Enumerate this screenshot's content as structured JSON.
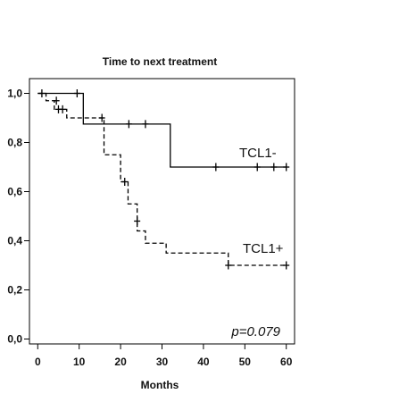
{
  "chart_data": {
    "type": "line",
    "title": "Time to next treatment",
    "xlabel": "Months",
    "ylabel": "",
    "xlim": [
      -2,
      62
    ],
    "ylim": [
      -0.02,
      1.06
    ],
    "xticks": [
      0,
      10,
      20,
      30,
      40,
      50,
      60
    ],
    "xtick_labels": [
      "0",
      "10",
      "20",
      "30",
      "40",
      "50",
      "60"
    ],
    "yticks": [
      0.0,
      0.2,
      0.4,
      0.6,
      0.8,
      1.0
    ],
    "ytick_labels": [
      "0,0",
      "0,2",
      "0,4",
      "0,6",
      "0,8",
      "1,0"
    ],
    "grid": false,
    "annotation": "p=0.079",
    "series": [
      {
        "name": "TCL1-",
        "style": "solid",
        "color": "#000000",
        "steps": [
          [
            0,
            1.0
          ],
          [
            11,
            1.0
          ],
          [
            11,
            0.875
          ],
          [
            32,
            0.875
          ],
          [
            32,
            0.7
          ],
          [
            60,
            0.7
          ]
        ],
        "censored": [
          [
            1,
            1.0
          ],
          [
            9.5,
            1.0
          ],
          [
            22,
            0.875
          ],
          [
            26,
            0.875
          ],
          [
            43,
            0.7
          ],
          [
            53,
            0.7
          ],
          [
            57,
            0.7
          ],
          [
            60,
            0.7
          ]
        ]
      },
      {
        "name": "TCL1+",
        "style": "dashed",
        "color": "#000000",
        "steps": [
          [
            0,
            1.0
          ],
          [
            2,
            1.0
          ],
          [
            2,
            0.97
          ],
          [
            4,
            0.97
          ],
          [
            4,
            0.935
          ],
          [
            7,
            0.935
          ],
          [
            7,
            0.9
          ],
          [
            16,
            0.9
          ],
          [
            16,
            0.75
          ],
          [
            20,
            0.75
          ],
          [
            20,
            0.64
          ],
          [
            21.8,
            0.64
          ],
          [
            21.8,
            0.55
          ],
          [
            24,
            0.55
          ],
          [
            24,
            0.44
          ],
          [
            26,
            0.44
          ],
          [
            26,
            0.39
          ],
          [
            31,
            0.39
          ],
          [
            31,
            0.35
          ],
          [
            46,
            0.35
          ],
          [
            46,
            0.3
          ],
          [
            60,
            0.3
          ]
        ],
        "censored": [
          [
            4.5,
            0.97
          ],
          [
            5,
            0.935
          ],
          [
            6,
            0.935
          ],
          [
            15.5,
            0.9
          ],
          [
            21,
            0.64
          ],
          [
            24,
            0.48
          ],
          [
            46,
            0.3
          ],
          [
            60,
            0.3
          ]
        ]
      }
    ]
  }
}
